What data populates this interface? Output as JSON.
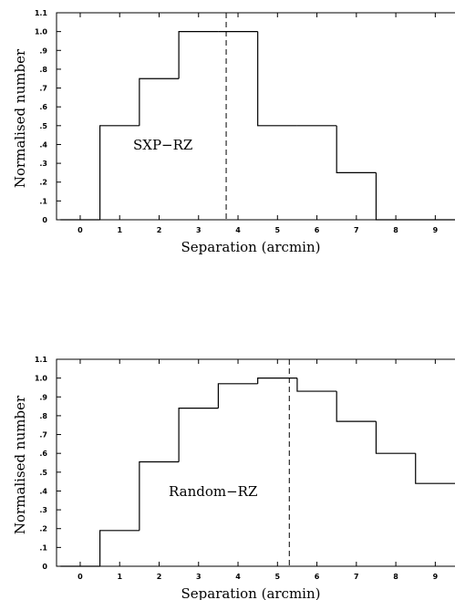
{
  "chart_data": [
    {
      "type": "histogram",
      "annotation": "SXP−RZ",
      "xlabel": "Separation (arcmin)",
      "ylabel": "Normalised number",
      "xlim": [
        -0.6,
        9.5
      ],
      "ylim": [
        0,
        1.1
      ],
      "x_ticks": [
        "0",
        "1",
        "2",
        "3",
        "4",
        "5",
        "6",
        "7",
        "8",
        "9"
      ],
      "y_ticks": [
        "0",
        ".1",
        ".2",
        ".3",
        ".4",
        ".5",
        ".6",
        ".7",
        ".8",
        ".9",
        "1.0",
        "1.1"
      ],
      "bin_edges": [
        -0.5,
        0.5,
        1.5,
        2.5,
        3.5,
        4.5,
        5.5,
        6.5,
        7.5,
        8.5,
        9.5
      ],
      "values": [
        0,
        0.5,
        0.75,
        1.0,
        1.0,
        0.5,
        0.5,
        0.25,
        0,
        0
      ],
      "vline": 3.7
    },
    {
      "type": "histogram",
      "annotation": "Random−RZ",
      "xlabel": "Separation (arcmin)",
      "ylabel": "Normalised number",
      "xlim": [
        -0.6,
        9.5
      ],
      "ylim": [
        0,
        1.1
      ],
      "x_ticks": [
        "0",
        "1",
        "2",
        "3",
        "4",
        "5",
        "6",
        "7",
        "8",
        "9"
      ],
      "y_ticks": [
        "0",
        ".1",
        ".2",
        ".3",
        ".4",
        ".5",
        ".6",
        ".7",
        ".8",
        ".9",
        "1.0",
        "1.1"
      ],
      "bin_edges": [
        -0.5,
        0.5,
        1.5,
        2.5,
        3.5,
        4.5,
        5.5,
        6.5,
        7.5,
        8.5,
        9.5
      ],
      "values": [
        0,
        0.19,
        0.555,
        0.84,
        0.97,
        1.0,
        0.93,
        0.77,
        0.6,
        0.44
      ],
      "vline": 5.3
    }
  ]
}
